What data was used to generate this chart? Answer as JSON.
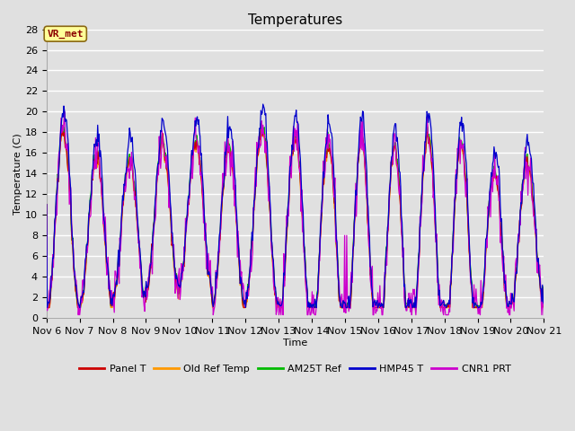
{
  "title": "Temperatures",
  "xlabel": "Time",
  "ylabel": "Temperature (C)",
  "ylim": [
    0,
    28
  ],
  "yticks": [
    0,
    2,
    4,
    6,
    8,
    10,
    12,
    14,
    16,
    18,
    20,
    22,
    24,
    26,
    28
  ],
  "xlim_hours": [
    0,
    360
  ],
  "xtick_hours": [
    0,
    24,
    48,
    72,
    96,
    120,
    144,
    168,
    192,
    216,
    240,
    264,
    288,
    312,
    336,
    360
  ],
  "xtick_labels": [
    "Nov 6",
    "Nov 7",
    "Nov 8",
    "Nov 9",
    "Nov 10",
    "Nov 11",
    "Nov 12",
    "Nov 13",
    "Nov 14",
    "Nov 15",
    "Nov 16",
    "Nov 17",
    "Nov 18",
    "Nov 19",
    "Nov 20",
    "Nov 21"
  ],
  "series_colors": [
    "#cc0000",
    "#ff9900",
    "#00bb00",
    "#0000cc",
    "#cc00cc"
  ],
  "series_labels": [
    "Panel T",
    "Old Ref Temp",
    "AM25T Ref",
    "HMP45 T",
    "CNR1 PRT"
  ],
  "annotation_text": "VR_met",
  "plot_bg_color": "#e0e0e0",
  "fig_bg_color": "#e0e0e0",
  "grid_color": "#ffffff",
  "title_fontsize": 11,
  "axis_fontsize": 8,
  "legend_fontsize": 8
}
